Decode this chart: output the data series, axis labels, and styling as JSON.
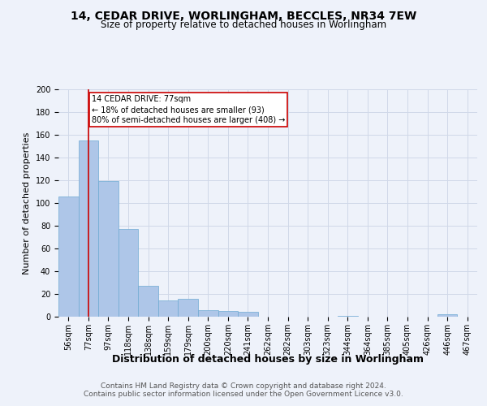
{
  "title": "14, CEDAR DRIVE, WORLINGHAM, BECCLES, NR34 7EW",
  "subtitle": "Size of property relative to detached houses in Worlingham",
  "xlabel": "Distribution of detached houses by size in Worlingham",
  "ylabel": "Number of detached properties",
  "bins": [
    "56sqm",
    "77sqm",
    "97sqm",
    "118sqm",
    "138sqm",
    "159sqm",
    "179sqm",
    "200sqm",
    "220sqm",
    "241sqm",
    "262sqm",
    "282sqm",
    "303sqm",
    "323sqm",
    "344sqm",
    "364sqm",
    "385sqm",
    "405sqm",
    "426sqm",
    "446sqm",
    "467sqm"
  ],
  "bar_heights": [
    106,
    155,
    119,
    77,
    27,
    14,
    16,
    6,
    5,
    4,
    0,
    0,
    0,
    0,
    1,
    0,
    0,
    0,
    0,
    2,
    0
  ],
  "bar_color": "#aec6e8",
  "bar_edge_color": "#6eaad2",
  "grid_color": "#d0d8e8",
  "background_color": "#eef2fa",
  "vline_x_index": 1,
  "vline_color": "#cc0000",
  "annotation_text": "14 CEDAR DRIVE: 77sqm\n← 18% of detached houses are smaller (93)\n80% of semi-detached houses are larger (408) →",
  "annotation_box_color": "#ffffff",
  "annotation_border_color": "#cc0000",
  "ylim": [
    0,
    200
  ],
  "yticks": [
    0,
    20,
    40,
    60,
    80,
    100,
    120,
    140,
    160,
    180,
    200
  ],
  "footer_line1": "Contains HM Land Registry data © Crown copyright and database right 2024.",
  "footer_line2": "Contains public sector information licensed under the Open Government Licence v3.0.",
  "title_fontsize": 10,
  "subtitle_fontsize": 8.5,
  "xlabel_fontsize": 9,
  "ylabel_fontsize": 8,
  "tick_fontsize": 7,
  "annotation_fontsize": 7,
  "footer_fontsize": 6.5
}
